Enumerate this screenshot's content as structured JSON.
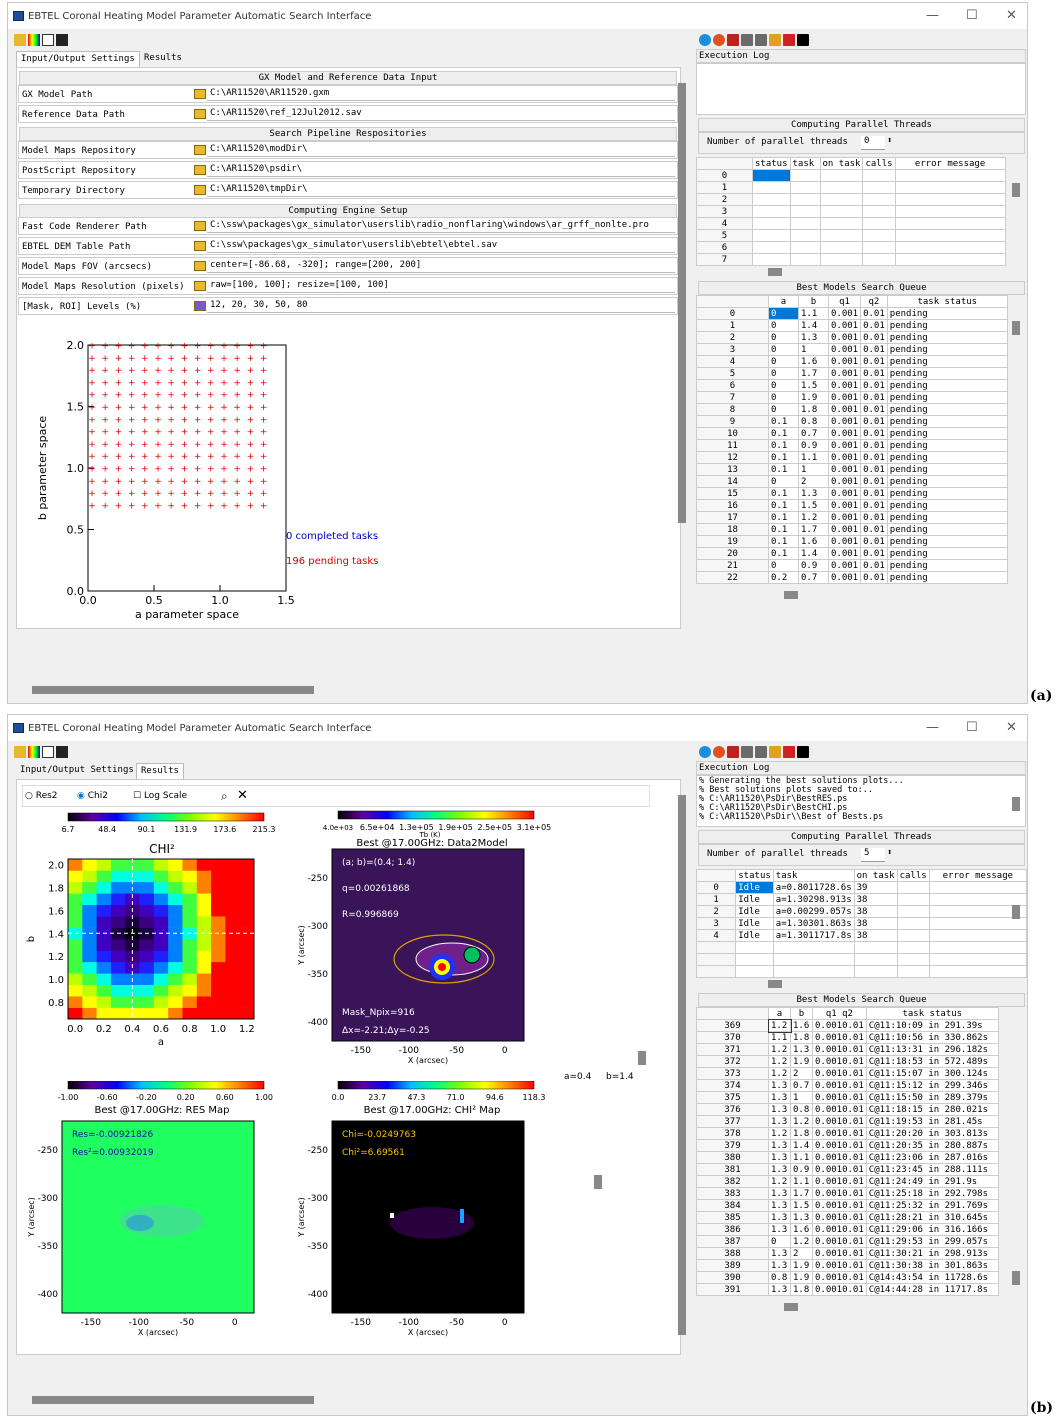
{
  "app_title": "EBTEL Coronal Heating Model Parameter Automatic Search Interface",
  "window_controls": {
    "minimize": "—",
    "maximize": "☐",
    "close": "✕"
  },
  "tabs": {
    "io": "Input/Output Settings",
    "results": "Results"
  },
  "labels": {
    "a": "(a)",
    "b": "(b)"
  },
  "exec_log_label": "Execution Log",
  "log_b": [
    "% Generating the best solutions plots...",
    "% Best solutions plots saved to:..",
    "% C:\\AR11520\\PsDir\\BestRES.ps",
    "% C:\\AR11520\\PsDir\\BestCHI.ps",
    "% C:\\AR11520\\PsDir\\\\Best of Bests.ps"
  ],
  "threads_header": "Computing Parallel Threads",
  "threads_label": "Number of parallel threads",
  "threads_a": "0",
  "threads_b": "5",
  "thread_cols": [
    "status",
    "task",
    "on task",
    "calls",
    "error message"
  ],
  "queue_header": "Best Models Search Queue",
  "queue_cols": [
    "a",
    "b",
    "q1",
    "q2",
    "task status"
  ],
  "sections": {
    "s1": "GX Model and Reference Data Input",
    "s2": "Search Pipeline Respositories",
    "s3": "Computing Engine Setup"
  },
  "settings": [
    {
      "label": "GX Model Path",
      "value": "C:\\AR11520\\AR11520.gxm"
    },
    {
      "label": "Reference Data Path",
      "value": "C:\\AR11520\\ref_12Jul2012.sav"
    },
    {
      "label": "Model Maps Repository",
      "value": "C:\\AR11520\\modDir\\"
    },
    {
      "label": "PostScript Repository",
      "value": "C:\\AR11520\\psdir\\"
    },
    {
      "label": "Temporary Directory",
      "value": "C:\\AR11520\\tmpDir\\"
    },
    {
      "label": "Fast Code Renderer Path",
      "value": "C:\\ssw\\packages\\gx_simulator\\userslib\\radio_nonflaring\\windows\\ar_grff_nonlte.pro"
    },
    {
      "label": "EBTEL DEM Table Path",
      "value": "C:\\ssw\\packages\\gx_simulator\\userslib\\ebtel\\ebtel.sav"
    },
    {
      "label": "Model Maps FOV (arcsecs)",
      "value": "center=[-86.68, -320]; range=[200, 200]"
    },
    {
      "label": "Model Maps Resolution (pixels)",
      "value": "raw=[100, 100]; resize=[100, 100]"
    },
    {
      "label": "[Mask, ROI] Levels (%)",
      "value": "12, 20, 30, 50, 80"
    }
  ],
  "param_plot": {
    "xlabel": "a parameter space",
    "ylabel": "b parameter space",
    "xticks": [
      "0.0",
      "0.5",
      "1.0",
      "1.5"
    ],
    "yticks": [
      "0.0",
      "0.5",
      "1.0",
      "1.5",
      "2.0"
    ],
    "completed": "0 completed tasks",
    "pending": "196 pending tasks",
    "a_values": [
      0,
      0.1,
      0.2,
      0.3,
      0.4,
      0.5,
      0.6,
      0.7,
      0.8,
      0.9,
      1.0,
      1.1,
      1.2,
      1.3
    ],
    "b_values": [
      0.7,
      0.8,
      0.9,
      1.0,
      1.1,
      1.2,
      1.3,
      1.4,
      1.5,
      1.6,
      1.7,
      1.8,
      1.9,
      2.0
    ]
  },
  "queue_a": [
    [
      "0",
      "0",
      "1.1",
      "0.001",
      "0.01",
      "pending"
    ],
    [
      "1",
      "0",
      "1.4",
      "0.001",
      "0.01",
      "pending"
    ],
    [
      "2",
      "0",
      "1.3",
      "0.001",
      "0.01",
      "pending"
    ],
    [
      "3",
      "0",
      "1",
      "0.001",
      "0.01",
      "pending"
    ],
    [
      "4",
      "0",
      "1.6",
      "0.001",
      "0.01",
      "pending"
    ],
    [
      "5",
      "0",
      "1.7",
      "0.001",
      "0.01",
      "pending"
    ],
    [
      "6",
      "0",
      "1.5",
      "0.001",
      "0.01",
      "pending"
    ],
    [
      "7",
      "0",
      "1.9",
      "0.001",
      "0.01",
      "pending"
    ],
    [
      "8",
      "0",
      "1.8",
      "0.001",
      "0.01",
      "pending"
    ],
    [
      "9",
      "0.1",
      "0.8",
      "0.001",
      "0.01",
      "pending"
    ],
    [
      "10",
      "0.1",
      "0.7",
      "0.001",
      "0.01",
      "pending"
    ],
    [
      "11",
      "0.1",
      "0.9",
      "0.001",
      "0.01",
      "pending"
    ],
    [
      "12",
      "0.1",
      "1.1",
      "0.001",
      "0.01",
      "pending"
    ],
    [
      "13",
      "0.1",
      "1",
      "0.001",
      "0.01",
      "pending"
    ],
    [
      "14",
      "0",
      "2",
      "0.001",
      "0.01",
      "pending"
    ],
    [
      "15",
      "0.1",
      "1.3",
      "0.001",
      "0.01",
      "pending"
    ],
    [
      "16",
      "0.1",
      "1.5",
      "0.001",
      "0.01",
      "pending"
    ],
    [
      "17",
      "0.1",
      "1.2",
      "0.001",
      "0.01",
      "pending"
    ],
    [
      "18",
      "0.1",
      "1.7",
      "0.001",
      "0.01",
      "pending"
    ],
    [
      "19",
      "0.1",
      "1.6",
      "0.001",
      "0.01",
      "pending"
    ],
    [
      "20",
      "0.1",
      "1.4",
      "0.001",
      "0.01",
      "pending"
    ],
    [
      "21",
      "0",
      "0.9",
      "0.001",
      "0.01",
      "pending"
    ],
    [
      "22",
      "0.2",
      "0.7",
      "0.001",
      "0.01",
      "pending"
    ]
  ],
  "threads_a_rows": [
    "0",
    "1",
    "2",
    "3",
    "4",
    "5",
    "6",
    "7"
  ],
  "threads_b_rows": [
    [
      "0",
      "Idle",
      "a=0.8011728.6s",
      "39",
      ""
    ],
    [
      "1",
      "Idle",
      "a=1.30298.913s",
      "38",
      ""
    ],
    [
      "2",
      "Idle",
      "a=0.00299.057s",
      "38",
      ""
    ],
    [
      "3",
      "Idle",
      "a=1.30301.863s",
      "38",
      ""
    ],
    [
      "4",
      "Idle",
      "a=1.3011717.8s",
      "38",
      ""
    ]
  ],
  "queue_b": [
    [
      "369",
      "1.2",
      "1.6",
      "0.0010.01",
      "C@11:10:09 in 291.39s"
    ],
    [
      "370",
      "1.1",
      "1.8",
      "0.0010.01",
      "C@11:10:56 in 330.862s"
    ],
    [
      "371",
      "1.2",
      "1.3",
      "0.0010.01",
      "C@11:13:31 in 296.182s"
    ],
    [
      "372",
      "1.2",
      "1.9",
      "0.0010.01",
      "C@11:18:53 in 572.489s"
    ],
    [
      "373",
      "1.2",
      "2",
      "0.0010.01",
      "C@11:15:07 in 300.124s"
    ],
    [
      "374",
      "1.3",
      "0.7",
      "0.0010.01",
      "C@11:15:12 in 299.346s"
    ],
    [
      "375",
      "1.3",
      "1",
      "0.0010.01",
      "C@11:15:50 in 289.379s"
    ],
    [
      "376",
      "1.3",
      "0.8",
      "0.0010.01",
      "C@11:18:15 in 280.021s"
    ],
    [
      "377",
      "1.3",
      "1.2",
      "0.0010.01",
      "C@11:19:53 in 281.45s"
    ],
    [
      "378",
      "1.2",
      "1.8",
      "0.0010.01",
      "C@11:20:20 in 303.813s"
    ],
    [
      "379",
      "1.3",
      "1.4",
      "0.0010.01",
      "C@11:20:35 in 280.887s"
    ],
    [
      "380",
      "1.3",
      "1.1",
      "0.0010.01",
      "C@11:23:06 in 287.016s"
    ],
    [
      "381",
      "1.3",
      "0.9",
      "0.0010.01",
      "C@11:23:45 in 288.111s"
    ],
    [
      "382",
      "1.2",
      "1.1",
      "0.0010.01",
      "C@11:24:49 in 291.9s"
    ],
    [
      "383",
      "1.3",
      "1.7",
      "0.0010.01",
      "C@11:25:18 in 292.798s"
    ],
    [
      "384",
      "1.3",
      "1.5",
      "0.0010.01",
      "C@11:25:32 in 291.769s"
    ],
    [
      "385",
      "1.3",
      "1.3",
      "0.0010.01",
      "C@11:28:21 in 310.645s"
    ],
    [
      "386",
      "1.3",
      "1.6",
      "0.0010.01",
      "C@11:29:06 in 316.166s"
    ],
    [
      "387",
      "0",
      "1.2",
      "0.0010.01",
      "C@11:29:53 in 299.057s"
    ],
    [
      "388",
      "1.3",
      "2",
      "0.0010.01",
      "C@11:30:21 in 298.913s"
    ],
    [
      "389",
      "1.3",
      "1.9",
      "0.0010.01",
      "C@11:30:38 in 301.863s"
    ],
    [
      "390",
      "0.8",
      "1.9",
      "0.0010.01",
      "C@14:43:54 in 11728.6s"
    ],
    [
      "391",
      "1.3",
      "1.8",
      "0.0010.01",
      "C@14:44:28 in 11717.8s"
    ]
  ],
  "results": {
    "radio": {
      "res2": "Res2",
      "chi2": "Chi2",
      "log": "Log Scale"
    },
    "chi_cbar": [
      "6.7",
      "48.4",
      "90.1",
      "131.9",
      "173.6",
      "215.3"
    ],
    "chi_title": "CHI²",
    "chi_xticks": [
      "0.0",
      "0.2",
      "0.4",
      "0.6",
      "0.8",
      "1.0",
      "1.2"
    ],
    "chi_yticks": [
      "2.0",
      "1.8",
      "1.6",
      "1.4",
      "1.2",
      "1.0",
      "0.8"
    ],
    "chi_xlabel": "a",
    "chi_ylabel": "b",
    "tb_cbar": [
      "4.0e+03",
      "6.5e+04",
      "1.3e+05",
      "1.9e+05",
      "2.5e+05",
      "3.1e+05"
    ],
    "tb_cbar_label": "Tb (K)",
    "best_title": "Best @17.00GHz: Data2Model",
    "best_ab": "(a; b)=(0.4; 1.4)",
    "best_q": "q=0.00261868",
    "best_r": "R=0.996869",
    "mask": "Mask_Npix=916",
    "dxdy": "Δx=-2.21;Δy=-0.25",
    "img_xticks": [
      "-150",
      "-100",
      "-50",
      "0"
    ],
    "img_yticks": [
      "-250",
      "-300",
      "-350",
      "-400"
    ],
    "img_xlabel": "X (arcsec)",
    "img_ylabel": "Y (arcsec)",
    "res_cbar": [
      "-1.00",
      "-0.60",
      "-0.20",
      "0.20",
      "0.60",
      "1.00"
    ],
    "res_title": "Best @17.00GHz: RES Map",
    "res_val": "Res=-0.00921826",
    "res2_val": "Res²=0.00932019",
    "chim_cbar": [
      "0.0",
      "23.7",
      "47.3",
      "71.0",
      "94.6",
      "118.3"
    ],
    "chim_title": "Best @17.00GHz: CHI² Map",
    "chi_val": "Chi=-0.0249763",
    "chi2_val": "Chi²=6.69561",
    "a_sel": "a=0.4",
    "b_sel": "b=1.4"
  },
  "colors": {
    "selection": "#0078d7",
    "completed": "#0000cc",
    "pending": "#d00000",
    "grid_marker": "#e00000"
  }
}
